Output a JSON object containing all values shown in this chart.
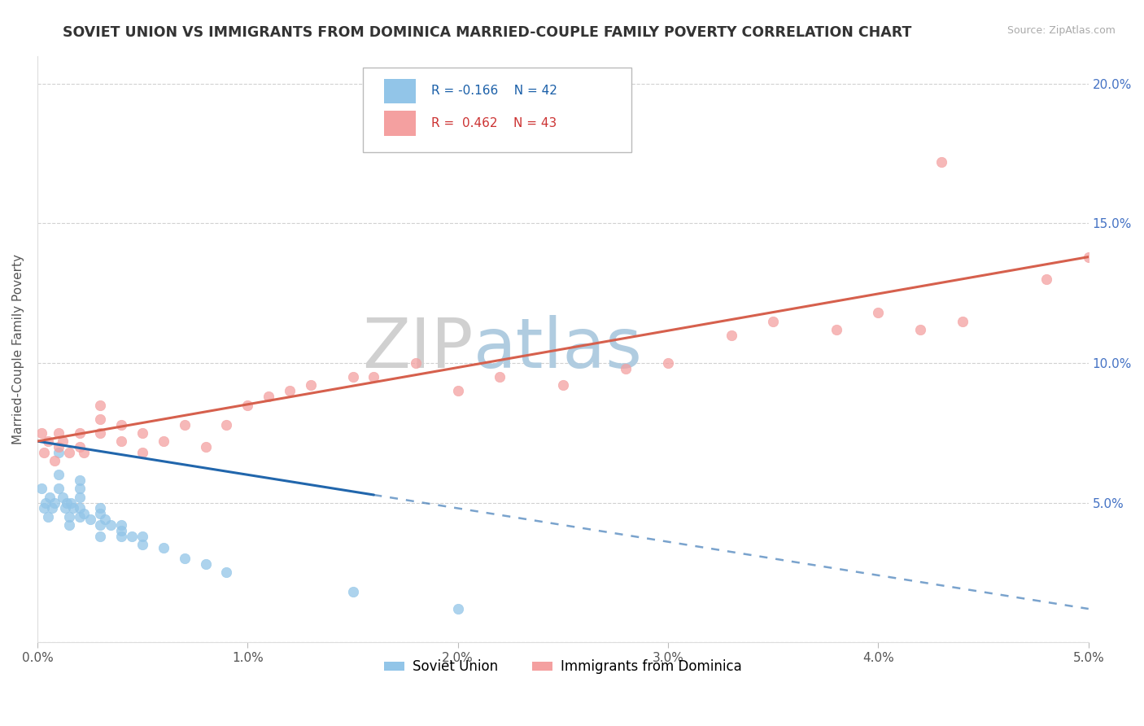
{
  "title": "SOVIET UNION VS IMMIGRANTS FROM DOMINICA MARRIED-COUPLE FAMILY POVERTY CORRELATION CHART",
  "source": "Source: ZipAtlas.com",
  "ylabel": "Married-Couple Family Poverty",
  "xmin": 0.0,
  "xmax": 0.05,
  "ymin": 0.0,
  "ymax": 0.21,
  "xticks": [
    0.0,
    0.01,
    0.02,
    0.03,
    0.04,
    0.05
  ],
  "xtick_labels": [
    "0.0%",
    "1.0%",
    "2.0%",
    "3.0%",
    "4.0%",
    "5.0%"
  ],
  "yticks": [
    0.0,
    0.05,
    0.1,
    0.15,
    0.2
  ],
  "ytick_labels": [
    "",
    "5.0%",
    "10.0%",
    "15.0%",
    "20.0%"
  ],
  "legend_soviet_R": "-0.166",
  "legend_soviet_N": "42",
  "legend_dominica_R": "0.462",
  "legend_dominica_N": "43",
  "legend_label_soviet": "Soviet Union",
  "legend_label_dominica": "Immigrants from Dominica",
  "color_soviet": "#92c5e8",
  "color_dominica": "#f4a0a0",
  "color_soviet_line": "#2166ac",
  "color_dominica_line": "#d6604d",
  "watermark_zip": "ZIP",
  "watermark_atlas": "atlas",
  "soviet_x": [
    0.0002,
    0.0003,
    0.0004,
    0.0005,
    0.0006,
    0.0007,
    0.0008,
    0.001,
    0.001,
    0.001,
    0.0012,
    0.0013,
    0.0014,
    0.0015,
    0.0015,
    0.0016,
    0.0017,
    0.002,
    0.002,
    0.002,
    0.002,
    0.002,
    0.0022,
    0.0025,
    0.003,
    0.003,
    0.003,
    0.003,
    0.0032,
    0.0035,
    0.004,
    0.004,
    0.004,
    0.0045,
    0.005,
    0.005,
    0.006,
    0.007,
    0.008,
    0.009,
    0.015,
    0.02
  ],
  "soviet_y": [
    0.055,
    0.048,
    0.05,
    0.045,
    0.052,
    0.048,
    0.05,
    0.068,
    0.06,
    0.055,
    0.052,
    0.048,
    0.05,
    0.045,
    0.042,
    0.05,
    0.048,
    0.058,
    0.055,
    0.052,
    0.048,
    0.045,
    0.046,
    0.044,
    0.048,
    0.046,
    0.042,
    0.038,
    0.044,
    0.042,
    0.042,
    0.04,
    0.038,
    0.038,
    0.038,
    0.035,
    0.034,
    0.03,
    0.028,
    0.025,
    0.018,
    0.012
  ],
  "dominica_x": [
    0.0002,
    0.0003,
    0.0005,
    0.0008,
    0.001,
    0.001,
    0.0012,
    0.0015,
    0.002,
    0.002,
    0.0022,
    0.003,
    0.003,
    0.003,
    0.004,
    0.004,
    0.005,
    0.005,
    0.006,
    0.007,
    0.008,
    0.009,
    0.01,
    0.011,
    0.012,
    0.013,
    0.015,
    0.016,
    0.018,
    0.02,
    0.022,
    0.025,
    0.028,
    0.03,
    0.033,
    0.035,
    0.038,
    0.04,
    0.042,
    0.043,
    0.044,
    0.048,
    0.05
  ],
  "dominica_y": [
    0.075,
    0.068,
    0.072,
    0.065,
    0.075,
    0.07,
    0.072,
    0.068,
    0.075,
    0.07,
    0.068,
    0.075,
    0.08,
    0.085,
    0.072,
    0.078,
    0.068,
    0.075,
    0.072,
    0.078,
    0.07,
    0.078,
    0.085,
    0.088,
    0.09,
    0.092,
    0.095,
    0.095,
    0.1,
    0.09,
    0.095,
    0.092,
    0.098,
    0.1,
    0.11,
    0.115,
    0.112,
    0.118,
    0.112,
    0.172,
    0.115,
    0.13,
    0.138
  ],
  "soviet_line_solid_end": 0.016,
  "soviet_line_dash_start": 0.016,
  "dominica_line_solid_end": 0.05,
  "soviet_line_y0": 0.072,
  "soviet_line_y1": 0.012,
  "dominica_line_y0": 0.072,
  "dominica_line_y1": 0.138
}
